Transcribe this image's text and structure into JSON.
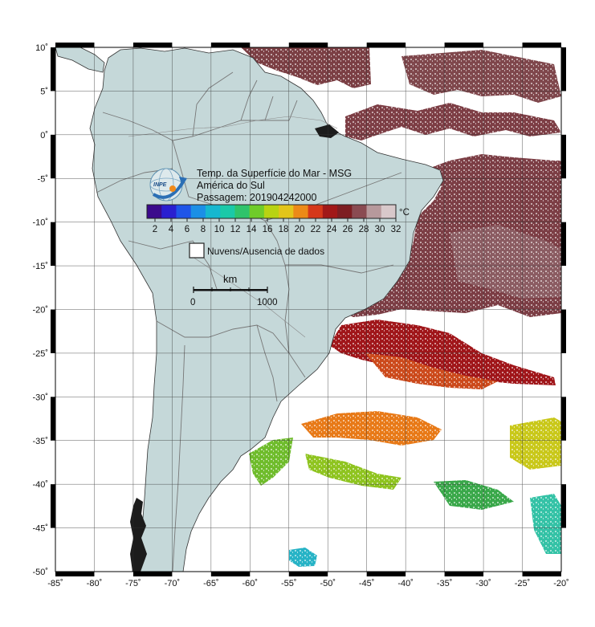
{
  "legend": {
    "title": "Temp. da Superfície do Mar - MSG",
    "region": "América do Sul",
    "pass_label": "Passagem: 201904242000",
    "logo_text": "INPE",
    "unit": "°C",
    "colorbar_ticks": [
      "2",
      "4",
      "6",
      "8",
      "10",
      "12",
      "14",
      "16",
      "18",
      "20",
      "22",
      "24",
      "26",
      "28",
      "30",
      "32"
    ],
    "colorbar_colors": [
      "#3b0a8c",
      "#2a1fd0",
      "#1f55e8",
      "#1b8fe6",
      "#16b7cf",
      "#1ac9a8",
      "#2fc36b",
      "#6fcc2a",
      "#b8d312",
      "#e3c51a",
      "#ec8a17",
      "#d5381a",
      "#a11818",
      "#7d1e22",
      "#8a4b52",
      "#b7999c",
      "#d8c8ca"
    ],
    "cloud_label": "Nuvens/Ausencia de dados",
    "scale_unit": "km",
    "scale_start": "0",
    "scale_end": "1000"
  },
  "axes": {
    "lat_labels": [
      "10˚",
      "5˚",
      "0˚",
      "-5˚",
      "-10˚",
      "-15˚",
      "-20˚",
      "-25˚",
      "-30˚",
      "-35˚",
      "-40˚",
      "-45˚",
      "-50˚"
    ],
    "lon_labels": [
      "-85˚",
      "-80˚",
      "-75˚",
      "-70˚",
      "-65˚",
      "-60˚",
      "-55˚",
      "-50˚",
      "-45˚",
      "-40˚",
      "-35˚",
      "-30˚",
      "-25˚",
      "-20˚"
    ]
  },
  "colors": {
    "land": "#c5d8d9",
    "warm_sst": "#7b3f44",
    "hot_sst": "#a0161a"
  }
}
